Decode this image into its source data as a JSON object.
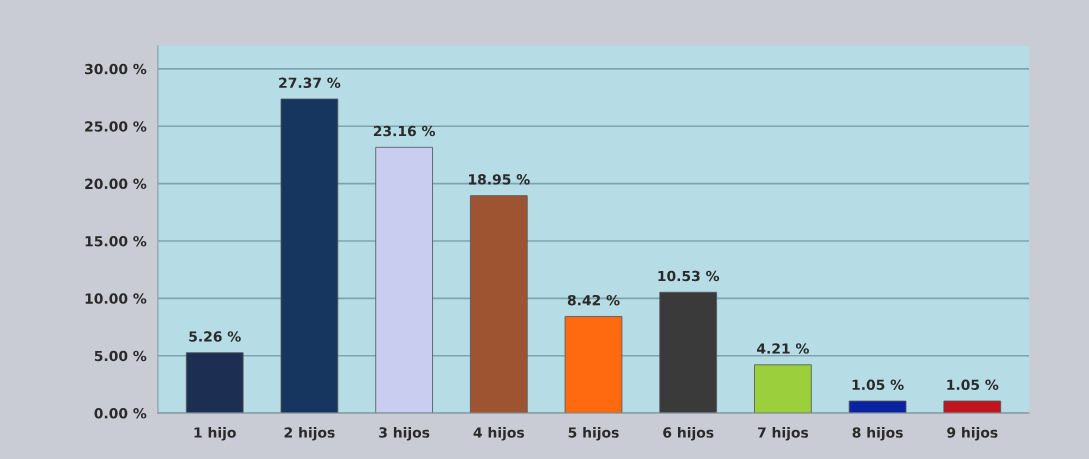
{
  "chart_data": {
    "type": "bar",
    "categories": [
      "1 hijo",
      "2 hijos",
      "3 hijos",
      "4 hijos",
      "5 hijos",
      "6 hijos",
      "7 hijos",
      "8 hijos",
      "9 hijos"
    ],
    "values": [
      5.26,
      27.37,
      23.16,
      18.95,
      8.42,
      10.53,
      4.21,
      1.05,
      1.05
    ],
    "colors": [
      "#1c2f52",
      "#16365f",
      "#c9cdf0",
      "#9e5430",
      "#ff6a10",
      "#3a3a3a",
      "#9ccf3c",
      "#0a22a0",
      "#c0141e"
    ],
    "value_labels": [
      "5.26 %",
      "27.37 %",
      "23.16 %",
      "18.95 %",
      "8.42 %",
      "10.53 %",
      "4.21 %",
      "1.05 %",
      "1.05 %"
    ],
    "ylim": [
      0,
      32
    ],
    "yticks": [
      {
        "value": 0,
        "label": "0.00 %"
      },
      {
        "value": 5,
        "label": "5.00 %"
      },
      {
        "value": 10,
        "label": "10.00 %"
      },
      {
        "value": 15,
        "label": "15.00 %"
      },
      {
        "value": 20,
        "label": "20.00 %"
      },
      {
        "value": 25,
        "label": "25.00 %"
      },
      {
        "value": 30,
        "label": "30.00 %"
      }
    ],
    "grid": "y"
  }
}
